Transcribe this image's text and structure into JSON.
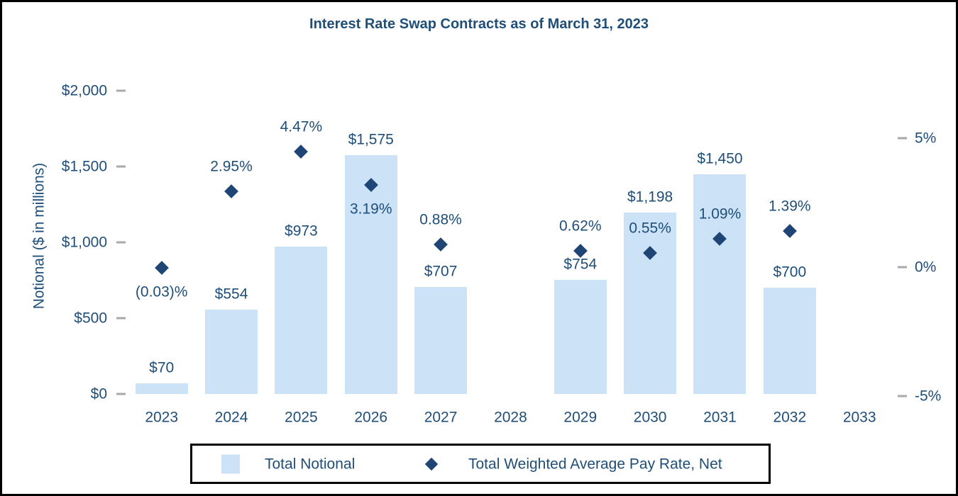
{
  "title": "Interest Rate Swap Contracts as of March 31, 2023",
  "colors": {
    "text": "#1F4E79",
    "bar_fill": "#CBE2F7",
    "marker_fill": "#1F4577",
    "tick_dash": "#A9A9A9",
    "frame_border": "#000000"
  },
  "left_axis": {
    "label": "Notional ($ in millions)",
    "tick_labels": [
      "$2,000",
      "$1,500",
      "$1,000",
      "$500",
      "$0"
    ],
    "tick_values": [
      2000,
      1500,
      1000,
      500,
      0
    ],
    "range": [
      0,
      2000
    ]
  },
  "right_axis": {
    "tick_labels": [
      "5%",
      "0%",
      "-5%"
    ],
    "tick_values": [
      5,
      0,
      -5
    ],
    "range": [
      -5,
      5
    ]
  },
  "legend": [
    {
      "label": "Total Notional",
      "marker": "square"
    },
    {
      "label": "Total Weighted Average Pay Rate, Net",
      "marker": "diamond"
    }
  ],
  "chart_data": {
    "type": "combo: bar (left axis) + scatter diamonds (right axis)",
    "title": "Interest Rate Swap Contracts as of March 31, 2023",
    "categories": [
      "2023",
      "2024",
      "2025",
      "2026",
      "2027",
      "2028",
      "2029",
      "2030",
      "2031",
      "2032",
      "2033"
    ],
    "series": [
      {
        "name": "Total Notional",
        "type": "bar",
        "axis": "left",
        "values": [
          70,
          554,
          973,
          1575,
          707,
          null,
          754,
          1198,
          1450,
          700,
          null
        ],
        "labels": [
          "$70",
          "$554",
          "$973",
          "$1,575",
          "$707",
          null,
          "$754",
          "$1,198",
          "$1,450",
          "$700",
          null
        ]
      },
      {
        "name": "Total Weighted Average Pay Rate, Net",
        "type": "scatter",
        "axis": "right",
        "values": [
          -0.03,
          2.95,
          4.47,
          3.19,
          0.88,
          null,
          0.62,
          0.55,
          1.09,
          1.39,
          null
        ],
        "labels": [
          "(0.03)%",
          "2.95%",
          "4.47%",
          "3.19%",
          "0.88%",
          null,
          "0.62%",
          "0.55%",
          "1.09%",
          "1.39%",
          null
        ],
        "label_position": [
          "below",
          "above",
          "above",
          "below",
          "above",
          null,
          "above",
          "above",
          "above",
          "above",
          null
        ]
      }
    ],
    "left_ylabel": "Notional ($ in millions)",
    "left_ylim": [
      0,
      2000
    ],
    "right_ylim": [
      -5,
      5
    ],
    "grid": false,
    "legend_position": "bottom"
  }
}
